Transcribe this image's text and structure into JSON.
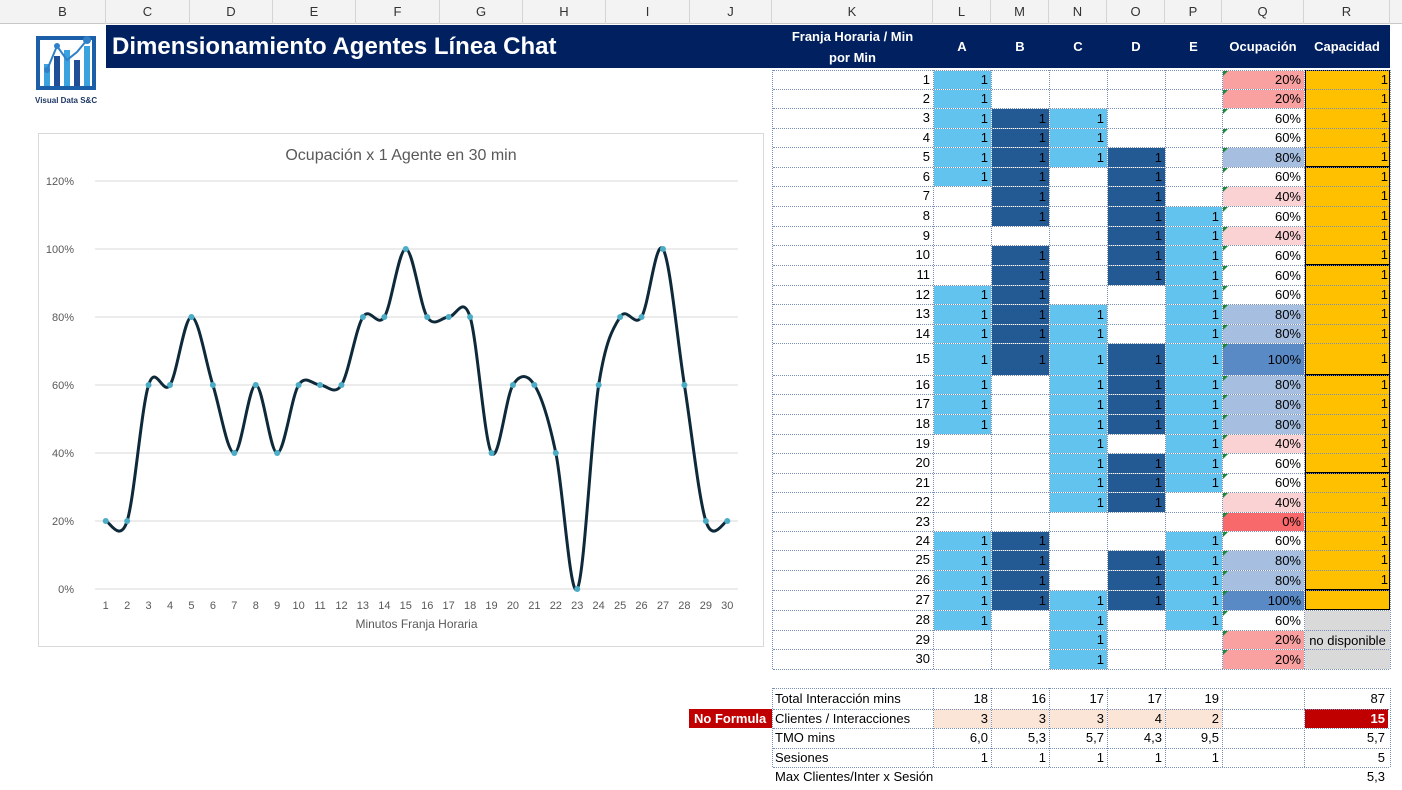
{
  "column_headers": [
    "B",
    "C",
    "D",
    "E",
    "F",
    "G",
    "H",
    "I",
    "J",
    "K",
    "L",
    "M",
    "N",
    "O",
    "P",
    "Q",
    "R"
  ],
  "title": "Dimensionamiento Agentes Línea Chat",
  "logo_text": "Visual Data S&C",
  "colors": {
    "navy": "#002060",
    "light_blue": "#62c4ee",
    "dark_blue": "#235a94",
    "gold": "#ffc000",
    "no_formula_red": "#c00000",
    "line": "#0e2a3a",
    "marker": "#4bacc6",
    "grey": "#d9d9d9"
  },
  "table": {
    "header": {
      "franja": "Franja Horaria / Min",
      "franja2": "por Min",
      "agents": [
        "A",
        "B",
        "C",
        "D",
        "E"
      ],
      "ocupacion": "Ocupación",
      "capacidad": "Capacidad"
    },
    "rows": [
      {
        "min": "1",
        "a": [
          1,
          0,
          0,
          0,
          0
        ],
        "occ": "20%"
      },
      {
        "min": "2",
        "a": [
          1,
          0,
          0,
          0,
          0
        ],
        "occ": "20%"
      },
      {
        "min": "3",
        "a": [
          1,
          1,
          1,
          0,
          0
        ],
        "occ": "60%"
      },
      {
        "min": "4",
        "a": [
          1,
          1,
          1,
          0,
          0
        ],
        "occ": "60%"
      },
      {
        "min": "5",
        "a": [
          1,
          1,
          1,
          1,
          0
        ],
        "occ": "80%"
      },
      {
        "min": "6",
        "a": [
          1,
          1,
          0,
          1,
          0
        ],
        "occ": "60%"
      },
      {
        "min": "7",
        "a": [
          0,
          1,
          0,
          1,
          0
        ],
        "occ": "40%"
      },
      {
        "min": "8",
        "a": [
          0,
          1,
          0,
          1,
          1
        ],
        "occ": "60%"
      },
      {
        "min": "9",
        "a": [
          0,
          0,
          0,
          1,
          1
        ],
        "occ": "40%"
      },
      {
        "min": "10",
        "a": [
          0,
          1,
          0,
          1,
          1
        ],
        "occ": "60%"
      },
      {
        "min": "11",
        "a": [
          0,
          1,
          0,
          1,
          1
        ],
        "occ": "60%"
      },
      {
        "min": "12",
        "a": [
          1,
          1,
          0,
          0,
          1
        ],
        "occ": "60%"
      },
      {
        "min": "13",
        "a": [
          1,
          1,
          1,
          0,
          1
        ],
        "occ": "80%"
      },
      {
        "min": "14",
        "a": [
          1,
          1,
          1,
          0,
          1
        ],
        "occ": "80%"
      },
      {
        "min": "15",
        "a": [
          1,
          1,
          1,
          1,
          1
        ],
        "occ": "100%"
      },
      {
        "min": "16",
        "a": [
          1,
          0,
          1,
          1,
          1
        ],
        "occ": "80%"
      },
      {
        "min": "17",
        "a": [
          1,
          0,
          1,
          1,
          1
        ],
        "occ": "80%"
      },
      {
        "min": "18",
        "a": [
          1,
          0,
          1,
          1,
          1
        ],
        "occ": "80%"
      },
      {
        "min": "19",
        "a": [
          0,
          0,
          1,
          0,
          1
        ],
        "occ": "40%"
      },
      {
        "min": "20",
        "a": [
          0,
          0,
          1,
          1,
          1
        ],
        "occ": "60%"
      },
      {
        "min": "21",
        "a": [
          0,
          0,
          1,
          1,
          1
        ],
        "occ": "60%"
      },
      {
        "min": "22",
        "a": [
          0,
          0,
          1,
          1,
          0
        ],
        "occ": "40%"
      },
      {
        "min": "23",
        "a": [
          0,
          0,
          0,
          0,
          0
        ],
        "occ": "0%"
      },
      {
        "min": "24",
        "a": [
          1,
          1,
          0,
          0,
          1
        ],
        "occ": "60%"
      },
      {
        "min": "25",
        "a": [
          1,
          1,
          0,
          1,
          1
        ],
        "occ": "80%"
      },
      {
        "min": "26",
        "a": [
          1,
          1,
          0,
          1,
          1
        ],
        "occ": "80%"
      },
      {
        "min": "27",
        "a": [
          1,
          1,
          1,
          1,
          1
        ],
        "occ": "100%"
      },
      {
        "min": "28",
        "a": [
          1,
          0,
          1,
          0,
          1
        ],
        "occ": "60%"
      },
      {
        "min": "29",
        "a": [
          0,
          0,
          1,
          0,
          0
        ],
        "occ": "20%"
      },
      {
        "min": "30",
        "a": [
          0,
          0,
          1,
          0,
          0
        ],
        "occ": "20%"
      }
    ],
    "capacity_value": "1",
    "no_disponible": "no disponible"
  },
  "summary": {
    "no_formula": "No Formula",
    "rows": [
      {
        "label": "Total Interacción mins",
        "vals": [
          "18",
          "16",
          "17",
          "17",
          "19"
        ],
        "total": "87"
      },
      {
        "label": "Clientes / Interacciones",
        "vals": [
          "3",
          "3",
          "3",
          "4",
          "2"
        ],
        "total": "15"
      },
      {
        "label": "TMO mins",
        "vals": [
          "6,0",
          "5,3",
          "5,7",
          "4,3",
          "9,5"
        ],
        "total": "5,7"
      },
      {
        "label": "Sesiones",
        "vals": [
          "1",
          "1",
          "1",
          "1",
          "1"
        ],
        "total": "5"
      },
      {
        "label": "Max Clientes/Inter x Sesión",
        "vals": [
          "",
          "",
          "",
          "",
          ""
        ],
        "total": "5,3"
      }
    ]
  },
  "chart_data": {
    "type": "line",
    "title": "Ocupación x 1 Agente en 30 min",
    "xlabel": "Minutos Franja Horaria",
    "ylabel": "",
    "x": [
      1,
      2,
      3,
      4,
      5,
      6,
      7,
      8,
      9,
      10,
      11,
      12,
      13,
      14,
      15,
      16,
      17,
      18,
      19,
      20,
      21,
      22,
      23,
      24,
      25,
      26,
      27,
      28,
      29,
      30
    ],
    "values": [
      20,
      20,
      60,
      60,
      80,
      60,
      40,
      60,
      40,
      60,
      60,
      60,
      80,
      80,
      100,
      80,
      80,
      80,
      40,
      60,
      60,
      40,
      0,
      60,
      80,
      80,
      100,
      60,
      20,
      20
    ],
    "y_ticks": [
      "0%",
      "20%",
      "40%",
      "60%",
      "80%",
      "100%",
      "120%"
    ],
    "ylim": [
      0,
      120
    ],
    "grid": true,
    "smooth": true
  }
}
